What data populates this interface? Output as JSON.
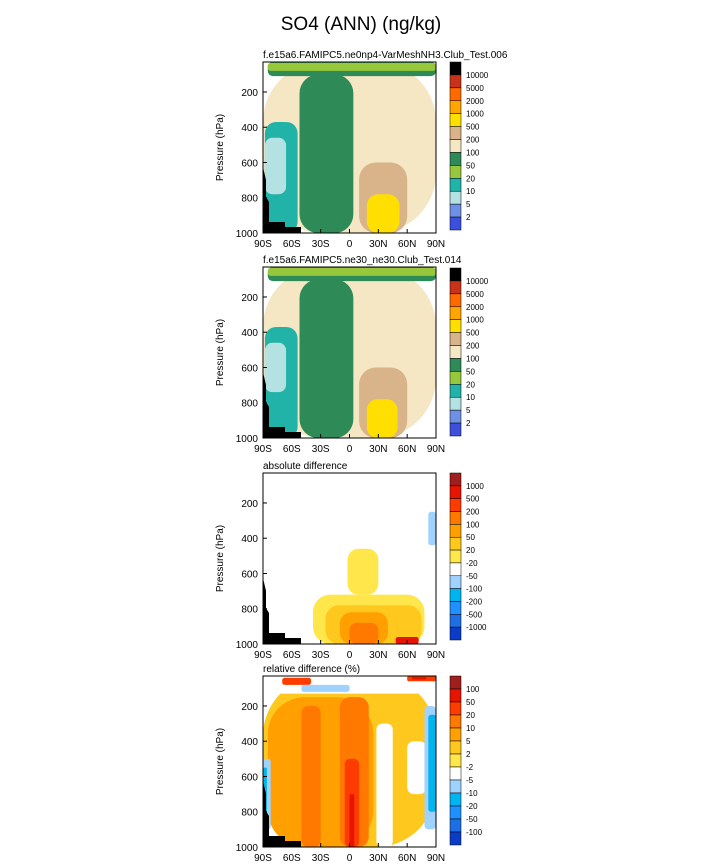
{
  "figure": {
    "title": "SO4 (ANN) (ng/kg)"
  },
  "colors": {
    "abs_fills": [
      "#1e1ea0",
      "#3c50dc",
      "#6e91e6",
      "#b4e1e1",
      "#21b2a8",
      "#97c83c",
      "#2e8b57",
      "#f5e6c4",
      "#d9b48a",
      "#ffdf00",
      "#ffa500",
      "#ff6a00",
      "#c83219"
    ],
    "diff_fills": [
      "#001e96",
      "#0a3cc8",
      "#1e6ee6",
      "#1e90ff",
      "#00b4f0",
      "#a0d2ff",
      "#ffffff",
      "#ffe64b",
      "#ffc81e",
      "#ffa000",
      "#ff7800",
      "#ff3c00",
      "#e61400",
      "#a01e1e"
    ]
  },
  "chart_data": [
    {
      "type": "heatmap",
      "title": "f.e15a6.FAMIPC5.ne0np4-VarMeshNH3.Club_Test.006",
      "xlabel": "",
      "ylabel": "Pressure (hPa)",
      "x_ticks": [
        "90S",
        "60S",
        "30S",
        "0",
        "30N",
        "60N",
        "90N"
      ],
      "y_ticks": [
        "200",
        "400",
        "600",
        "800",
        "1000"
      ],
      "xlim": [
        -90,
        90
      ],
      "ylim": [
        1000,
        30
      ],
      "colorbar": [
        "10000",
        "5000",
        "2000",
        "1000",
        "500",
        "200",
        "100",
        "50",
        "20",
        "10",
        "5",
        "2"
      ],
      "fields": [
        {
          "color_index": 7,
          "lat": [
            -90,
            90
          ],
          "p": [
            30,
            1000
          ]
        },
        {
          "color_index": 6,
          "lat": [
            -52,
            4
          ],
          "p": [
            100,
            1000
          ]
        },
        {
          "color_index": 4,
          "lat": [
            -88,
            -54
          ],
          "p": [
            370,
            1000
          ]
        },
        {
          "color_index": 3,
          "lat": [
            -88,
            -66
          ],
          "p": [
            460,
            780
          ]
        },
        {
          "color_index": 8,
          "lat": [
            10,
            60
          ],
          "p": [
            600,
            1000
          ]
        },
        {
          "color_index": 9,
          "lat": [
            18,
            52
          ],
          "p": [
            780,
            1000
          ]
        },
        {
          "color_index": 6,
          "lat": [
            -85,
            90
          ],
          "p": [
            30,
            110
          ]
        },
        {
          "color_index": 5,
          "lat": [
            -85,
            90
          ],
          "p": [
            35,
            80
          ]
        }
      ]
    },
    {
      "type": "heatmap",
      "title": "f.e15a6.FAMIPC5.ne30_ne30.Club_Test.014",
      "xlabel": "",
      "ylabel": "Pressure (hPa)",
      "x_ticks": [
        "90S",
        "60S",
        "30S",
        "0",
        "30N",
        "60N",
        "90N"
      ],
      "y_ticks": [
        "200",
        "400",
        "600",
        "800",
        "1000"
      ],
      "xlim": [
        -90,
        90
      ],
      "ylim": [
        1000,
        30
      ],
      "colorbar": [
        "10000",
        "5000",
        "2000",
        "1000",
        "500",
        "200",
        "100",
        "50",
        "20",
        "10",
        "5",
        "2"
      ],
      "fields": [
        {
          "color_index": 7,
          "lat": [
            -90,
            90
          ],
          "p": [
            30,
            1000
          ]
        },
        {
          "color_index": 6,
          "lat": [
            -52,
            4
          ],
          "p": [
            100,
            1000
          ]
        },
        {
          "color_index": 4,
          "lat": [
            -88,
            -54
          ],
          "p": [
            370,
            1000
          ]
        },
        {
          "color_index": 3,
          "lat": [
            -88,
            -66
          ],
          "p": [
            460,
            740
          ]
        },
        {
          "color_index": 8,
          "lat": [
            10,
            60
          ],
          "p": [
            600,
            1000
          ]
        },
        {
          "color_index": 9,
          "lat": [
            18,
            50
          ],
          "p": [
            780,
            1000
          ]
        },
        {
          "color_index": 6,
          "lat": [
            -85,
            90
          ],
          "p": [
            30,
            110
          ]
        },
        {
          "color_index": 5,
          "lat": [
            -85,
            90
          ],
          "p": [
            35,
            80
          ]
        }
      ]
    },
    {
      "type": "heatmap",
      "title": "absolute difference",
      "xlabel": "",
      "ylabel": "Pressure (hPa)",
      "x_ticks": [
        "90S",
        "60S",
        "30S",
        "0",
        "30N",
        "60N",
        "90N"
      ],
      "y_ticks": [
        "200",
        "400",
        "600",
        "800",
        "1000"
      ],
      "xlim": [
        -90,
        90
      ],
      "ylim": [
        1000,
        30
      ],
      "colorbar": [
        "1000",
        "500",
        "200",
        "100",
        "50",
        "20",
        "-20",
        "-50",
        "-100",
        "-200",
        "-500",
        "-1000"
      ],
      "fields": [
        {
          "color_index": 7,
          "lat": [
            -38,
            78
          ],
          "p": [
            720,
            1000
          ]
        },
        {
          "color_index": 7,
          "lat": [
            -2,
            30
          ],
          "p": [
            460,
            720
          ]
        },
        {
          "color_index": 8,
          "lat": [
            -25,
            75
          ],
          "p": [
            780,
            1000
          ]
        },
        {
          "color_index": 9,
          "lat": [
            -10,
            40
          ],
          "p": [
            820,
            1000
          ]
        },
        {
          "color_index": 10,
          "lat": [
            0,
            30
          ],
          "p": [
            880,
            1000
          ]
        },
        {
          "color_index": 12,
          "lat": [
            48,
            72
          ],
          "p": [
            960,
            1000
          ]
        },
        {
          "color_index": 5,
          "lat": [
            82,
            90
          ],
          "p": [
            250,
            440
          ]
        }
      ]
    },
    {
      "type": "heatmap",
      "title": "relative difference (%)",
      "xlabel": "",
      "ylabel": "Pressure (hPa)",
      "x_ticks": [
        "90S",
        "60S",
        "30S",
        "0",
        "30N",
        "60N",
        "90N"
      ],
      "y_ticks": [
        "200",
        "400",
        "600",
        "800",
        "1000"
      ],
      "xlim": [
        -90,
        90
      ],
      "ylim": [
        1000,
        30
      ],
      "colorbar": [
        "100",
        "50",
        "20",
        "10",
        "5",
        "2",
        "-2",
        "-5",
        "-10",
        "-20",
        "-50",
        "-100"
      ],
      "fields": [
        {
          "color_index": 8,
          "lat": [
            -90,
            90
          ],
          "p": [
            30,
            1000
          ]
        },
        {
          "color_index": 9,
          "lat": [
            -85,
            25
          ],
          "p": [
            150,
            1000
          ]
        },
        {
          "color_index": 10,
          "lat": [
            -50,
            -30
          ],
          "p": [
            200,
            1000
          ]
        },
        {
          "color_index": 10,
          "lat": [
            -10,
            20
          ],
          "p": [
            150,
            1000
          ]
        },
        {
          "color_index": 11,
          "lat": [
            -5,
            10
          ],
          "p": [
            500,
            1000
          ]
        },
        {
          "color_index": 12,
          "lat": [
            0,
            5
          ],
          "p": [
            700,
            1000
          ]
        },
        {
          "color_index": 6,
          "lat": [
            28,
            45
          ],
          "p": [
            300,
            1000
          ]
        },
        {
          "color_index": 6,
          "lat": [
            60,
            80
          ],
          "p": [
            400,
            700
          ]
        },
        {
          "color_index": 5,
          "lat": [
            78,
            90
          ],
          "p": [
            200,
            900
          ]
        },
        {
          "color_index": 4,
          "lat": [
            82,
            90
          ],
          "p": [
            250,
            800
          ]
        },
        {
          "color_index": 5,
          "lat": [
            -90,
            -82
          ],
          "p": [
            500,
            900
          ]
        },
        {
          "color_index": 4,
          "lat": [
            -90,
            -86
          ],
          "p": [
            550,
            850
          ]
        },
        {
          "color_index": 6,
          "lat": [
            -90,
            90
          ],
          "p": [
            30,
            130
          ]
        },
        {
          "color_index": 11,
          "lat": [
            60,
            90
          ],
          "p": [
            30,
            60
          ]
        },
        {
          "color_index": 12,
          "lat": [
            65,
            80
          ],
          "p": [
            35,
            50
          ]
        },
        {
          "color_index": 11,
          "lat": [
            -70,
            -40
          ],
          "p": [
            40,
            80
          ]
        },
        {
          "color_index": 5,
          "lat": [
            -50,
            0
          ],
          "p": [
            80,
            120
          ]
        }
      ]
    }
  ]
}
